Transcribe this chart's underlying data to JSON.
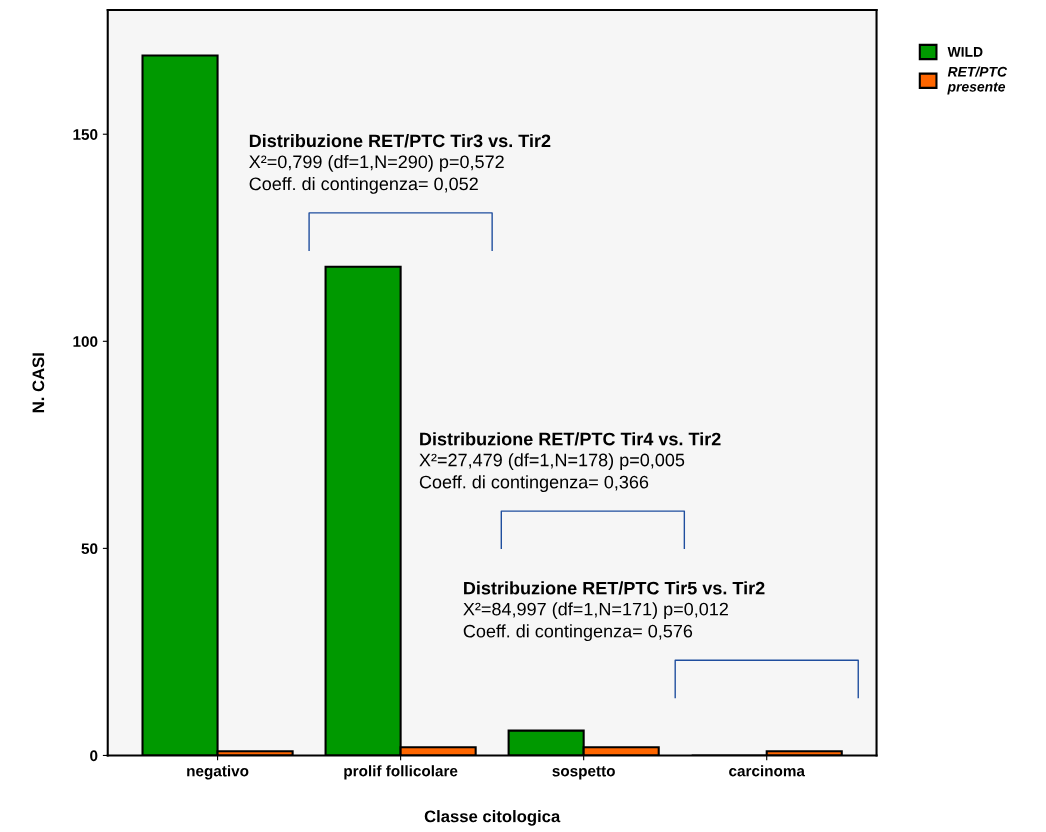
{
  "chart_data": {
    "type": "bar",
    "xlabel": "Classe citologica",
    "ylabel": "N. CASI",
    "categories": [
      "negativo",
      "prolif follicolare",
      "sospetto",
      "carcinoma"
    ],
    "series": [
      {
        "name": "WILD",
        "color": "#009900",
        "values": [
          169,
          118,
          6,
          0
        ]
      },
      {
        "name": "RET/PTC\npresente",
        "color": "#ff6600",
        "values": [
          1,
          2,
          2,
          1
        ]
      }
    ],
    "ylim": [
      0,
      180
    ],
    "yticks": [
      0,
      50,
      100,
      150
    ],
    "grid": false,
    "legend": "top right",
    "annotations": [
      "Distribuzione RET/PTC Tir3 vs. Tir2\nX²=0,799 (df=1,N=290) p=0,572\nCoeff. di contingenza= 0,052",
      "Distribuzione RET/PTC Tir4 vs. Tir2\nX²=27,479 (df=1,N=178) p=0,005\nCoeff. di contingenza= 0,366",
      "Distribuzione RET/PTC Tir5 vs. Tir2\nX²=84,997 (df=1,N=171) p=0,012\nCoeff. di contingenza= 0,576"
    ]
  }
}
